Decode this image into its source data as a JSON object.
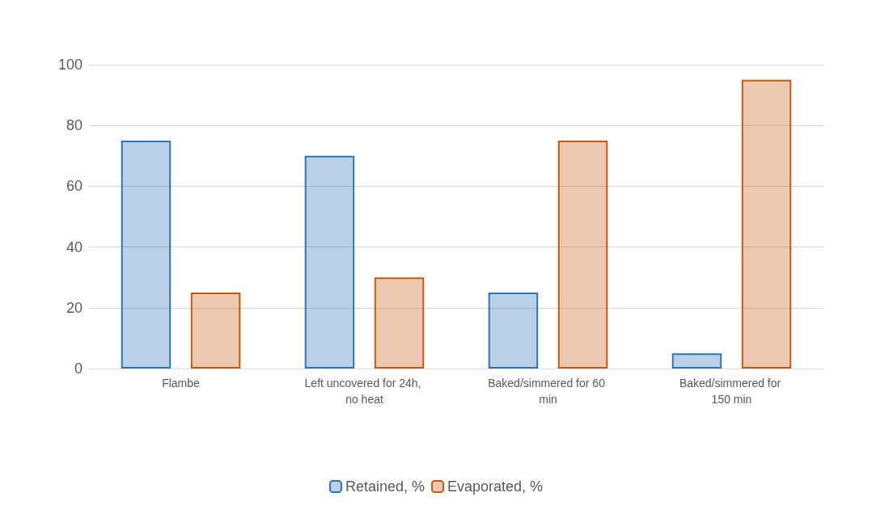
{
  "chart_data": {
    "type": "bar",
    "categories": [
      "Flambe",
      "Left uncovered for 24h, no heat",
      "Baked/simmered for 60 min",
      "Baked/simmered for 150 min"
    ],
    "series": [
      {
        "name": "Retained, %",
        "color": "#2e75b6",
        "values": [
          75,
          70,
          25,
          5
        ]
      },
      {
        "name": "Evaporated, %",
        "color": "#c55a11",
        "values": [
          25,
          30,
          75,
          95
        ]
      }
    ],
    "ylim": [
      0,
      100
    ],
    "yticks": [
      0,
      20,
      40,
      60,
      80,
      100
    ],
    "grid": "y",
    "legend": "bottom"
  }
}
